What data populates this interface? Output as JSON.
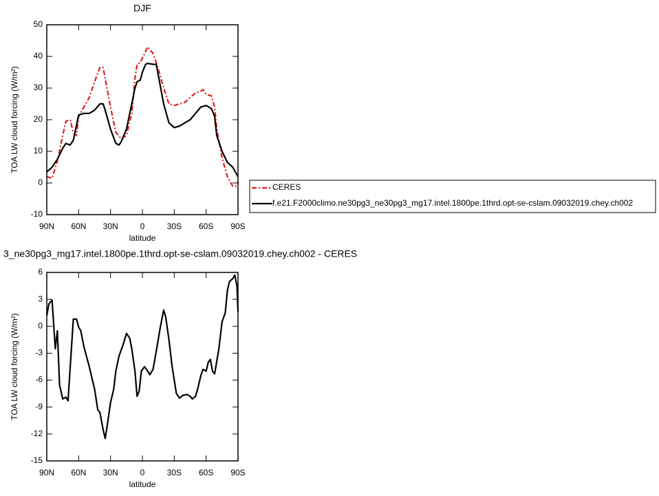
{
  "chart_data": [
    {
      "type": "line",
      "title": "DJF",
      "xlabel": "latitude",
      "ylabel": "TOA LW cloud forcing (W/m²)",
      "xlim": [
        90,
        -90
      ],
      "xticks": [
        {
          "value": 90,
          "label": "90N"
        },
        {
          "value": 60,
          "label": "60N"
        },
        {
          "value": 30,
          "label": "30N"
        },
        0,
        {
          "value": -30,
          "label": "30S"
        },
        {
          "value": -60,
          "label": "60S"
        },
        {
          "value": -90,
          "label": "90S"
        }
      ],
      "ylim": [
        -10,
        50
      ],
      "yticks": [
        -10,
        0,
        10,
        20,
        30,
        40,
        50
      ],
      "series": [
        {
          "name": "CERES",
          "color": "#e41a1c",
          "dashed": true,
          "x": [
            90,
            85,
            80,
            75,
            72,
            68,
            65,
            62,
            60,
            55,
            50,
            45,
            40,
            37,
            35,
            30,
            25,
            20,
            15,
            10,
            7,
            5,
            2,
            0,
            -5,
            -10,
            -15,
            -20,
            -25,
            -30,
            -35,
            -40,
            -45,
            -50,
            -55,
            -57,
            -60,
            -65,
            -68,
            -70,
            -75,
            -80,
            -85,
            -88,
            -90
          ],
          "values": [
            2,
            1.5,
            7,
            15,
            19.5,
            20,
            16,
            15,
            21,
            24,
            27,
            32,
            36.5,
            36.5,
            33,
            24,
            16,
            14,
            15,
            22,
            33,
            37.5,
            38,
            39.5,
            43,
            41,
            36,
            30,
            25,
            24.5,
            25,
            25.5,
            27,
            28.5,
            29,
            29.5,
            28,
            27.5,
            24,
            17,
            8,
            2,
            -1,
            -1,
            0.5
          ]
        },
        {
          "name": "f.e21.F2000climo.ne30pg3_ne30pg3_mg17.intel.1800pe.1thrd.opt-se-cslam.09032019.chey.ch002",
          "color": "#000000",
          "dashed": false,
          "x": [
            90,
            85,
            80,
            75,
            72,
            68,
            65,
            60,
            55,
            50,
            45,
            40,
            37,
            35,
            30,
            25,
            22,
            20,
            15,
            10,
            7,
            5,
            2,
            0,
            -3,
            -5,
            -10,
            -13,
            -15,
            -20,
            -25,
            -30,
            -35,
            -40,
            -45,
            -50,
            -55,
            -60,
            -65,
            -68,
            -70,
            -75,
            -80,
            -85,
            -90
          ],
          "values": [
            3.5,
            5,
            7.5,
            11,
            12.5,
            12,
            13.5,
            21.5,
            22,
            22,
            23,
            25,
            25,
            23,
            17,
            12.5,
            12,
            13,
            17,
            25,
            30,
            32,
            32.5,
            35,
            37.5,
            37.8,
            37.5,
            37.5,
            34,
            25,
            19,
            17.5,
            18,
            19,
            20,
            22,
            24,
            24.5,
            23.5,
            21,
            15,
            10,
            6.5,
            5,
            2
          ]
        }
      ]
    },
    {
      "type": "line",
      "title": "3_ne30pg3_mg17.intel.1800pe.1thrd.opt-se-cslam.09032019.chey.ch002 - CERES",
      "xlabel": "latitude",
      "ylabel": "TOA LW cloud forcing (W/m²)",
      "xlim": [
        90,
        -90
      ],
      "xticks": [
        {
          "value": 90,
          "label": "90N"
        },
        {
          "value": 60,
          "label": "60N"
        },
        {
          "value": 30,
          "label": "30N"
        },
        0,
        {
          "value": -30,
          "label": "30S"
        },
        {
          "value": -60,
          "label": "60S"
        },
        {
          "value": -90,
          "label": "90S"
        }
      ],
      "ylim": [
        -15,
        6
      ],
      "yticks": [
        -15,
        -12,
        -9,
        -6,
        -3,
        0,
        3,
        6
      ],
      "series": [
        {
          "color": "#000000",
          "dashed": false,
          "x": [
            90,
            88,
            85,
            82,
            80,
            78,
            75,
            72,
            70,
            65,
            62,
            60,
            58,
            55,
            50,
            45,
            42,
            40,
            37,
            35,
            33,
            30,
            27,
            25,
            22,
            18,
            15,
            12,
            10,
            7,
            5,
            3,
            1,
            -2,
            -5,
            -7,
            -10,
            -12,
            -15,
            -17,
            -20,
            -22,
            -25,
            -28,
            -32,
            -35,
            -38,
            -42,
            -45,
            -47,
            -50,
            -52,
            -55,
            -57,
            -60,
            -62,
            -64,
            -66,
            -68,
            -72,
            -75,
            -78,
            -80,
            -82,
            -85,
            -87,
            -89,
            -90
          ],
          "values": [
            1.2,
            2.5,
            2.9,
            -2.5,
            -0.5,
            -6.5,
            -8.1,
            -7.9,
            -8.3,
            0.8,
            0.8,
            -0.1,
            -0.5,
            -2.3,
            -4.5,
            -7,
            -9.3,
            -9.6,
            -11.5,
            -12.5,
            -11,
            -8.5,
            -7,
            -5,
            -3.3,
            -2,
            -0.8,
            -1.3,
            -2.5,
            -5,
            -7.8,
            -7.2,
            -5,
            -4.5,
            -5,
            -5.4,
            -4.8,
            -3.5,
            -1.4,
            0,
            1.8,
            1,
            -1.5,
            -4.5,
            -7.5,
            -8,
            -7.7,
            -7.6,
            -7.8,
            -8.1,
            -7.8,
            -7,
            -5.5,
            -4.8,
            -5,
            -4,
            -3.7,
            -5,
            -5.3,
            -2.5,
            0.5,
            1.5,
            4,
            5,
            5.3,
            5.7,
            4.5,
            1.6
          ]
        }
      ]
    }
  ]
}
